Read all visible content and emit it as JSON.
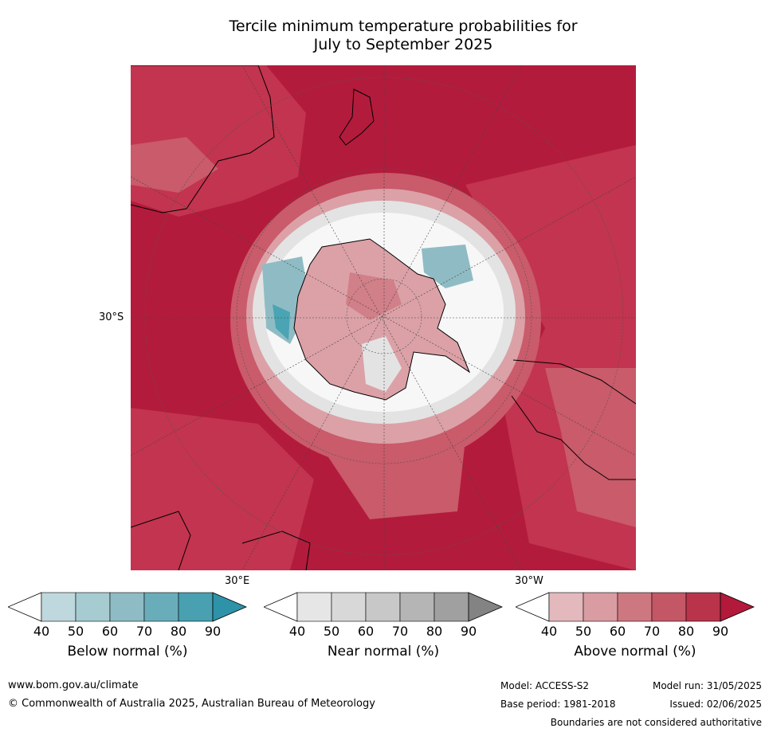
{
  "title": {
    "line1": "Tercile minimum temperature probabilities for",
    "line2": "July to September 2025"
  },
  "map": {
    "projection": "south-polar stereographic",
    "labels": {
      "lat_30s": "30°S",
      "lon_30e": "30°E",
      "lon_30w": "30°W"
    },
    "colors": {
      "above_90": "#b31b3c",
      "above_80": "#c2344f",
      "above_70": "#c95b6a",
      "above_60": "#d17f88",
      "above_50": "#dba1a7",
      "near_40": "#e3e3e3",
      "below_60": "#8fbcc4",
      "below_80": "#4aa4b4",
      "coast": "#000000"
    }
  },
  "colorbars": [
    {
      "title": "Below normal (%)",
      "ticks": [
        "40",
        "50",
        "60",
        "70",
        "80",
        "90"
      ],
      "colors": [
        "#ffffff",
        "#bed8dd",
        "#a6cbd1",
        "#8fbcc4",
        "#6aadba",
        "#48a0b1",
        "#2e92a8"
      ]
    },
    {
      "title": "Near normal (%)",
      "ticks": [
        "40",
        "50",
        "60",
        "70",
        "80",
        "90"
      ],
      "colors": [
        "#ffffff",
        "#e6e6e6",
        "#d8d8d8",
        "#c8c8c8",
        "#b5b5b5",
        "#a0a0a0",
        "#838383"
      ]
    },
    {
      "title": "Above normal (%)",
      "ticks": [
        "40",
        "50",
        "60",
        "70",
        "80",
        "90"
      ],
      "colors": [
        "#ffffff",
        "#e3b9bd",
        "#d99ca2",
        "#cd7881",
        "#c45766",
        "#b9344b",
        "#b2193a"
      ]
    }
  ],
  "footer": {
    "url": "www.bom.gov.au/climate",
    "copyright": "© Commonwealth of Australia 2025, Australian Bureau of Meteorology",
    "model": "Model: ACCESS-S2",
    "model_run": "Model run: 31/05/2025",
    "base_period": "Base period: 1981-2018",
    "issued": "Issued: 02/06/2025",
    "disclaimer": "Boundaries are not considered authoritative"
  }
}
